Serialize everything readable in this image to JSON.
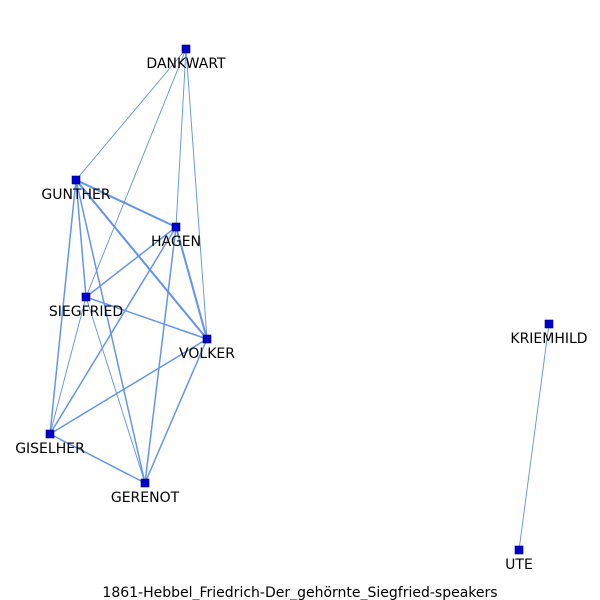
{
  "caption": "1861-Hebbel_Friedrich-Der_gehörnte_Siegfried-speakers",
  "colors": {
    "node": "#0000cc",
    "node_stroke": "#000080",
    "edge": "#6495ed"
  },
  "nodes": [
    {
      "id": "DANKWART",
      "label": "DANKWART"
    },
    {
      "id": "GUNTHER",
      "label": "GUNTHER"
    },
    {
      "id": "HAGEN",
      "label": "HAGEN"
    },
    {
      "id": "SIEGFRIED",
      "label": "SIEGFRIED"
    },
    {
      "id": "VOLKER",
      "label": "VOLKER"
    },
    {
      "id": "GISELHER",
      "label": "GISELHER"
    },
    {
      "id": "GERENOT",
      "label": "GERENOT"
    },
    {
      "id": "KRIEMHILD",
      "label": "KRIEMHILD"
    },
    {
      "id": "UTE",
      "label": "UTE"
    }
  ],
  "edges": [
    {
      "source": "DANKWART",
      "target": "GUNTHER",
      "weight": 1
    },
    {
      "source": "DANKWART",
      "target": "SIEGFRIED",
      "weight": 1
    },
    {
      "source": "DANKWART",
      "target": "HAGEN",
      "weight": 1
    },
    {
      "source": "DANKWART",
      "target": "VOLKER",
      "weight": 1
    },
    {
      "source": "GUNTHER",
      "target": "HAGEN",
      "weight": 3
    },
    {
      "source": "GUNTHER",
      "target": "VOLKER",
      "weight": 3
    },
    {
      "source": "GUNTHER",
      "target": "SIEGFRIED",
      "weight": 2
    },
    {
      "source": "GUNTHER",
      "target": "GISELHER",
      "weight": 2
    },
    {
      "source": "GUNTHER",
      "target": "GERENOT",
      "weight": 2
    },
    {
      "source": "HAGEN",
      "target": "VOLKER",
      "weight": 3
    },
    {
      "source": "HAGEN",
      "target": "SIEGFRIED",
      "weight": 2
    },
    {
      "source": "HAGEN",
      "target": "GISELHER",
      "weight": 2
    },
    {
      "source": "HAGEN",
      "target": "GERENOT",
      "weight": 2
    },
    {
      "source": "SIEGFRIED",
      "target": "VOLKER",
      "weight": 2
    },
    {
      "source": "SIEGFRIED",
      "target": "GISELHER",
      "weight": 1
    },
    {
      "source": "SIEGFRIED",
      "target": "GERENOT",
      "weight": 1
    },
    {
      "source": "VOLKER",
      "target": "GISELHER",
      "weight": 2
    },
    {
      "source": "VOLKER",
      "target": "GERENOT",
      "weight": 2
    },
    {
      "source": "GISELHER",
      "target": "GERENOT",
      "weight": 2
    },
    {
      "source": "KRIEMHILD",
      "target": "UTE",
      "weight": 1
    }
  ]
}
